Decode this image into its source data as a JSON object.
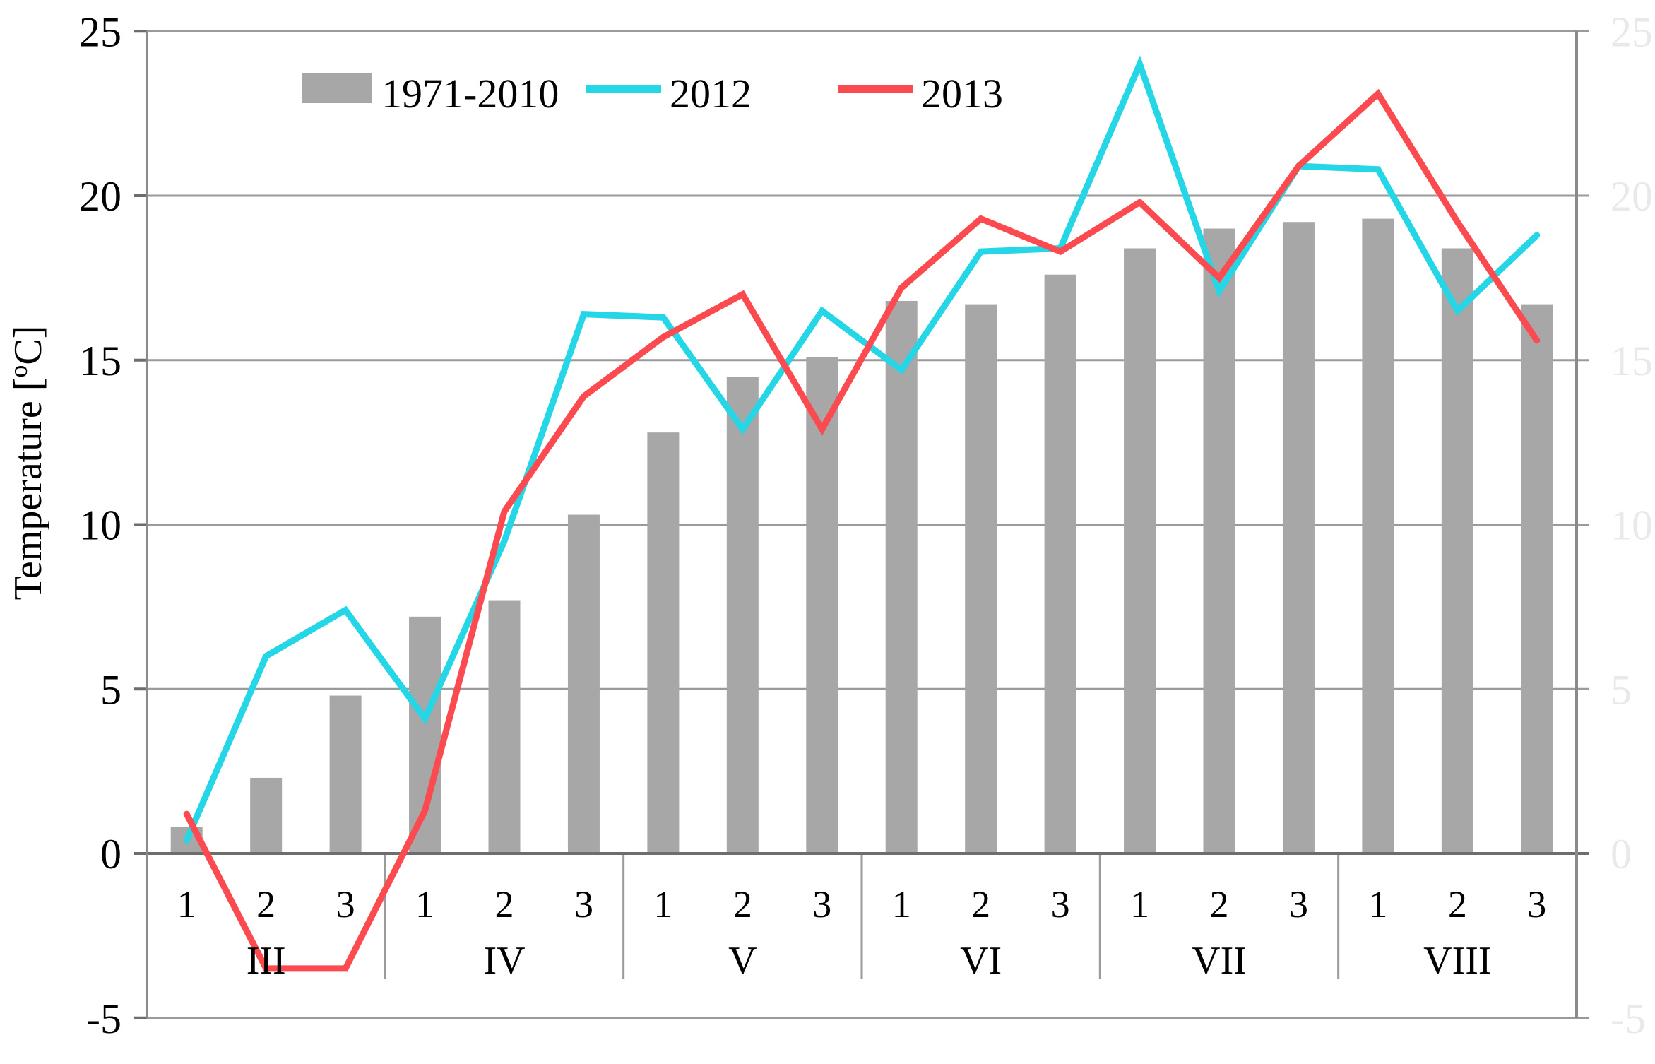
{
  "chart_data": {
    "type": "combo-bar-line",
    "ylabel": "Temperature [°C]",
    "ylabel_parts": [
      "Temperature [",
      "o",
      "C]"
    ],
    "ylim": [
      -5,
      25
    ],
    "y_ticks": [
      25,
      20,
      15,
      10,
      5,
      0,
      -5
    ],
    "right_axis_ticks": [
      25,
      20,
      15,
      10,
      5,
      0,
      -5
    ],
    "right_axis_label_color": "#e9e9e9",
    "grid": true,
    "legend_position": "top",
    "months": [
      "III",
      "IV",
      "V",
      "VI",
      "VII",
      "VIII"
    ],
    "decade_labels": [
      "1",
      "2",
      "3"
    ],
    "categories": [
      {
        "month": "III",
        "decade": "1"
      },
      {
        "month": "III",
        "decade": "2"
      },
      {
        "month": "III",
        "decade": "3"
      },
      {
        "month": "IV",
        "decade": "1"
      },
      {
        "month": "IV",
        "decade": "2"
      },
      {
        "month": "IV",
        "decade": "3"
      },
      {
        "month": "V",
        "decade": "1"
      },
      {
        "month": "V",
        "decade": "2"
      },
      {
        "month": "V",
        "decade": "3"
      },
      {
        "month": "VI",
        "decade": "1"
      },
      {
        "month": "VI",
        "decade": "2"
      },
      {
        "month": "VI",
        "decade": "3"
      },
      {
        "month": "VII",
        "decade": "1"
      },
      {
        "month": "VII",
        "decade": "2"
      },
      {
        "month": "VII",
        "decade": "3"
      },
      {
        "month": "VIII",
        "decade": "1"
      },
      {
        "month": "VIII",
        "decade": "2"
      },
      {
        "month": "VIII",
        "decade": "3"
      }
    ],
    "series": [
      {
        "name": "1971-2010",
        "type": "bar",
        "color": "#a7a7a7",
        "values": [
          0.8,
          2.3,
          4.8,
          7.2,
          7.7,
          10.3,
          12.8,
          14.5,
          15.1,
          16.8,
          16.7,
          17.6,
          18.4,
          19.0,
          19.2,
          19.3,
          18.4,
          16.7
        ]
      },
      {
        "name": "2012",
        "type": "line",
        "color": "#24d6e6",
        "values": [
          0.4,
          6.0,
          7.4,
          4.1,
          9.5,
          16.4,
          16.3,
          12.9,
          16.5,
          14.7,
          18.3,
          18.4,
          24.0,
          17.1,
          20.9,
          20.8,
          16.5,
          18.8
        ]
      },
      {
        "name": "2013",
        "type": "line",
        "color": "#fb4b50",
        "values": [
          1.2,
          -3.5,
          -3.5,
          1.3,
          10.4,
          13.9,
          15.7,
          17.0,
          12.9,
          17.2,
          19.3,
          18.3,
          19.8,
          17.5,
          20.9,
          23.1,
          19.2,
          15.6
        ]
      }
    ]
  }
}
